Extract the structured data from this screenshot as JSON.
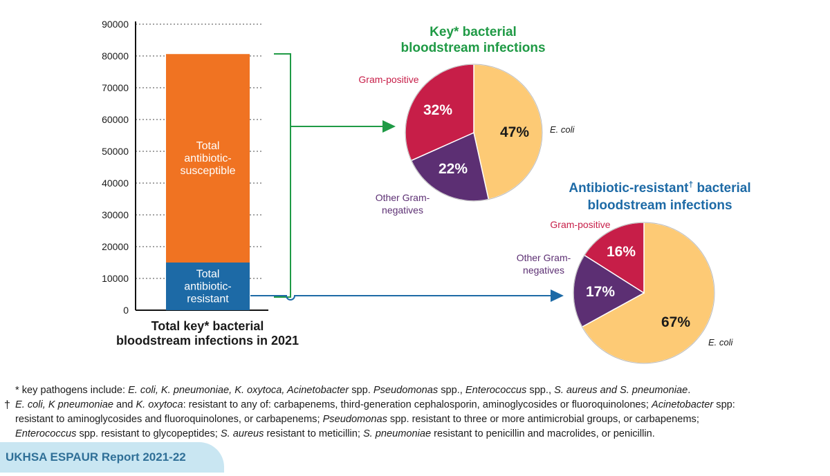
{
  "chart_data": [
    {
      "type": "bar",
      "stacked": true,
      "xlabel": [
        "Total key* bacterial",
        "bloodstream infections in 2021"
      ],
      "ylim": [
        0,
        90000
      ],
      "yticks": [
        0,
        10000,
        20000,
        30000,
        40000,
        50000,
        60000,
        70000,
        80000,
        90000
      ],
      "grid": "dotted horizontal",
      "segments": [
        {
          "name": "Total antibiotic-resistant",
          "label_lines": [
            "Total",
            "antibiotic-",
            "resistant"
          ],
          "from": 0,
          "to": 15000,
          "color": "#1d6aa6"
        },
        {
          "name": "Total antibiotic-susceptible",
          "label_lines": [
            "Total",
            "antibiotic-",
            "susceptible"
          ],
          "from": 15000,
          "to": 80600,
          "color": "#f07322"
        }
      ]
    },
    {
      "type": "pie",
      "title": [
        "Key* bacterial",
        "bloodstream infections"
      ],
      "title_color": "#1f9a45",
      "slices": [
        {
          "name": "E. coli",
          "value": 47,
          "label": "47%",
          "color": "#fdca75",
          "text_color": "#1a1a1a"
        },
        {
          "name": "Other Gram-negatives",
          "name_lines": [
            "Other Gram-",
            "negatives"
          ],
          "value": 22,
          "label": "22%",
          "color": "#5c2f73",
          "text_color": "#ffffff"
        },
        {
          "name": "Gram-positive",
          "value": 32,
          "label": "32%",
          "color": "#c71e48",
          "text_color": "#ffffff"
        }
      ]
    },
    {
      "type": "pie",
      "title": [
        "Antibiotic-resistant",
        "bloodstream infections"
      ],
      "title_mark": "†",
      "title_line1_rest": " bacterial",
      "title_color": "#1d6aa6",
      "slices": [
        {
          "name": "E. coli",
          "value": 67,
          "label": "67%",
          "color": "#fdca75",
          "text_color": "#1a1a1a"
        },
        {
          "name": "Other Gram-negatives",
          "name_lines": [
            "Other Gram-",
            "negatives"
          ],
          "value": 17,
          "label": "17%",
          "color": "#5c2f73",
          "text_color": "#ffffff"
        },
        {
          "name": "Gram-positive",
          "value": 16,
          "label": "16%",
          "color": "#c71e48",
          "text_color": "#ffffff"
        }
      ]
    }
  ],
  "colors": {
    "bracket_green": "#1f9a45",
    "arrow_blue": "#1d6aa6"
  },
  "footnotes": {
    "line1": [
      {
        "t": "* key pathogens include: "
      },
      {
        "t": "E. coli, K. pneumoniae, K. oxytoca, Acinetobacter",
        "i": true
      },
      {
        "t": " spp. "
      },
      {
        "t": "Pseudomonas",
        "i": true
      },
      {
        "t": " spp., "
      },
      {
        "t": "Enterococcus",
        "i": true
      },
      {
        "t": " spp., "
      },
      {
        "t": "S. aureus and S. pneumoniae",
        "i": true
      },
      {
        "t": "."
      }
    ],
    "dagger": "†",
    "line2": [
      {
        "t": "E. coli, K pneumoniae",
        "i": true
      },
      {
        "t": " and "
      },
      {
        "t": "K. oxytoca",
        "i": true
      },
      {
        "t": ": resistant to any of: carbapenems, third-generation cephalosporin, aminoglycosides or fluoroquinolones; "
      },
      {
        "t": "Acinetobacter",
        "i": true
      },
      {
        "t": " spp:"
      }
    ],
    "line3": [
      {
        "t": "resistant to aminoglycosides and fluoroquinolones, or carbapenems; "
      },
      {
        "t": "Pseudomonas",
        "i": true
      },
      {
        "t": " spp. resistant to three or more antimicrobial groups, or carbapenems;"
      }
    ],
    "line4": [
      {
        "t": "Enterococcus",
        "i": true
      },
      {
        "t": " spp. resistant to glycopeptides; "
      },
      {
        "t": "S. aureus",
        "i": true
      },
      {
        "t": " resistant to meticillin; "
      },
      {
        "t": "S. pneumoniae",
        "i": true
      },
      {
        "t": " resistant to penicillin and macrolides, or penicillin."
      }
    ]
  },
  "banner": {
    "text": "UKHSA ESPAUR Report 2021-22"
  }
}
